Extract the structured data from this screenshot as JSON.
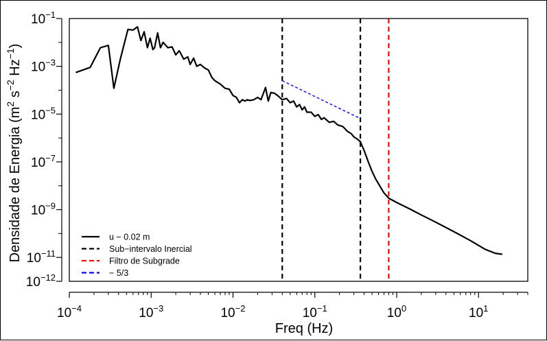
{
  "chart_data": {
    "type": "line",
    "xlabel": "Freq (Hz)",
    "ylabel": {
      "parts": [
        "Densidade de Energia (m",
        "2",
        " s",
        "−2",
        " Hz",
        "−1",
        ")"
      ]
    },
    "x_scale": "log",
    "y_scale": "log",
    "xlim": [
      0.0001,
      40
    ],
    "ylim": [
      1e-12,
      0.1
    ],
    "x_ticks": [
      {
        "base": "10",
        "exp": "−4",
        "value": 0.0001
      },
      {
        "base": "10",
        "exp": "−3",
        "value": 0.001
      },
      {
        "base": "10",
        "exp": "−2",
        "value": 0.01
      },
      {
        "base": "10",
        "exp": "−1",
        "value": 0.1
      },
      {
        "base": "10",
        "exp": "0",
        "value": 1
      },
      {
        "base": "10",
        "exp": "1",
        "value": 10
      }
    ],
    "y_ticks": [
      {
        "base": "10",
        "exp": "−1",
        "value": 0.1
      },
      {
        "base": "10",
        "exp": "−3",
        "value": 0.001
      },
      {
        "base": "10",
        "exp": "−5",
        "value": 1e-05
      },
      {
        "base": "10",
        "exp": "−7",
        "value": 1e-07
      },
      {
        "base": "10",
        "exp": "−9",
        "value": 1e-09
      },
      {
        "base": "10",
        "exp": "−11",
        "value": 1e-11
      },
      {
        "base": "10",
        "exp": "−12",
        "value": 1e-12
      }
    ],
    "grid": false,
    "legend_position": "bottom-left",
    "series": [
      {
        "name": "u − 0.02 m",
        "color": "#000000",
        "style": "solid",
        "points": [
          [
            0.00012,
            0.00055
          ],
          [
            0.00018,
            0.0009
          ],
          [
            0.00024,
            0.006
          ],
          [
            0.0003,
            0.0075
          ],
          [
            0.00035,
            0.00012
          ],
          [
            0.00042,
            0.002
          ],
          [
            0.00052,
            0.035
          ],
          [
            0.0006,
            0.033
          ],
          [
            0.00068,
            0.045
          ],
          [
            0.00075,
            0.012
          ],
          [
            0.00082,
            0.028
          ],
          [
            0.0009,
            0.006
          ],
          [
            0.00097,
            0.015
          ],
          [
            0.00105,
            0.005
          ],
          [
            0.0011,
            0.006
          ],
          [
            0.0012,
            0.025
          ],
          [
            0.0013,
            0.006
          ],
          [
            0.0014,
            0.01
          ],
          [
            0.0016,
            0.006
          ],
          [
            0.0018,
            0.0065
          ],
          [
            0.002,
            0.003
          ],
          [
            0.0022,
            0.0045
          ],
          [
            0.0025,
            0.002
          ],
          [
            0.0028,
            0.0025
          ],
          [
            0.003,
            0.0012
          ],
          [
            0.0033,
            0.0022
          ],
          [
            0.0036,
            0.001
          ],
          [
            0.004,
            0.0012
          ],
          [
            0.0045,
            0.00085
          ],
          [
            0.005,
            0.0007
          ],
          [
            0.0055,
            0.00035
          ],
          [
            0.006,
            0.00025
          ],
          [
            0.007,
            0.00018
          ],
          [
            0.008,
            0.00012
          ],
          [
            0.009,
            0.00011
          ],
          [
            0.01,
            6e-05
          ],
          [
            0.011,
            5e-05
          ],
          [
            0.012,
            3e-05
          ],
          [
            0.013,
            4e-05
          ],
          [
            0.014,
            3.5e-05
          ],
          [
            0.015,
            4e-05
          ],
          [
            0.016,
            3.7e-05
          ],
          [
            0.018,
            4e-05
          ],
          [
            0.02,
            5e-05
          ],
          [
            0.022,
            4e-05
          ],
          [
            0.025,
            0.00013
          ],
          [
            0.027,
            3.5e-05
          ],
          [
            0.029,
            8e-05
          ],
          [
            0.032,
            7.5e-05
          ],
          [
            0.035,
            6e-05
          ],
          [
            0.04,
            4e-05
          ],
          [
            0.045,
            4.5e-05
          ],
          [
            0.05,
            3e-05
          ],
          [
            0.055,
            3.5e-05
          ],
          [
            0.06,
            2e-05
          ],
          [
            0.065,
            2.5e-05
          ],
          [
            0.07,
            1.5e-05
          ],
          [
            0.075,
            2e-05
          ],
          [
            0.08,
            1.2e-05
          ],
          [
            0.09,
            1.2e-05
          ],
          [
            0.1,
            8e-06
          ],
          [
            0.11,
            9.5e-06
          ],
          [
            0.12,
            6e-06
          ],
          [
            0.13,
            7e-06
          ],
          [
            0.15,
            4.5e-06
          ],
          [
            0.17,
            5e-06
          ],
          [
            0.19,
            3.5e-06
          ],
          [
            0.22,
            3e-06
          ],
          [
            0.25,
            1.9e-06
          ],
          [
            0.28,
            1.5e-06
          ],
          [
            0.3,
            1.1e-06
          ],
          [
            0.33,
            9e-07
          ],
          [
            0.36,
            7e-07
          ],
          [
            0.4,
            3e-07
          ],
          [
            0.45,
            1e-07
          ],
          [
            0.5,
            4e-08
          ],
          [
            0.55,
            2e-08
          ],
          [
            0.62,
            1e-08
          ],
          [
            0.7,
            5e-09
          ],
          [
            0.8,
            3e-09
          ],
          [
            1,
            2e-09
          ],
          [
            1.5,
            1e-09
          ],
          [
            2,
            6e-10
          ],
          [
            3,
            3e-10
          ],
          [
            5,
            1.2e-10
          ],
          [
            8,
            5e-11
          ],
          [
            12,
            2.2e-11
          ],
          [
            16,
            1.5e-11
          ],
          [
            19.5,
            1.35e-11
          ]
        ]
      },
      {
        "name": "Sub−intervalo Inercial",
        "color": "#000000",
        "style": "dashed",
        "vlines": [
          0.04,
          0.36
        ]
      },
      {
        "name": "Filtro de Subgrade",
        "color": "#ff0000",
        "style": "dashed",
        "vlines": [
          0.8
        ]
      },
      {
        "name": "− 5/3",
        "color": "#0000ff",
        "style": "dashed",
        "points": [
          [
            0.04,
            0.00025
          ],
          [
            0.36,
            6.5e-06
          ]
        ]
      }
    ]
  }
}
